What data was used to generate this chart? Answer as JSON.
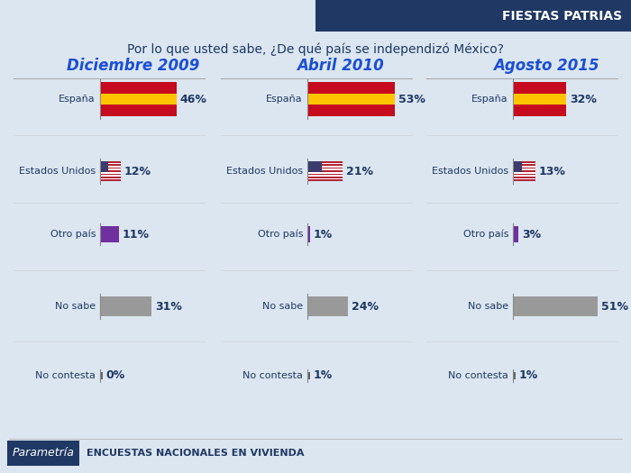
{
  "title": "Por lo que usted sabe, ¿De qué país se independizó México?",
  "header_label": "FIESTAS PATRIAS",
  "footer_label": "Parametría",
  "footer_text": "ENCUESTAS NACIONALES EN VIVIENDA",
  "columns": [
    "Diciembre 2009",
    "Abril 2010",
    "Agosto 2015"
  ],
  "categories": [
    "España",
    "Estados Unidos",
    "Otro país",
    "No sabe",
    "No contesta"
  ],
  "values": [
    [
      46,
      12,
      11,
      31,
      0
    ],
    [
      53,
      21,
      1,
      24,
      1
    ],
    [
      32,
      13,
      3,
      51,
      1
    ]
  ],
  "bg_color": "#dce6f0",
  "header_bg": "#1f3864",
  "title_color": "#1f3864",
  "col_title_color": "#1a4fd6",
  "label_color": "#1f3864",
  "value_color": "#1f3864",
  "max_val": 55,
  "fig_width": 7.0,
  "fig_height": 5.25
}
